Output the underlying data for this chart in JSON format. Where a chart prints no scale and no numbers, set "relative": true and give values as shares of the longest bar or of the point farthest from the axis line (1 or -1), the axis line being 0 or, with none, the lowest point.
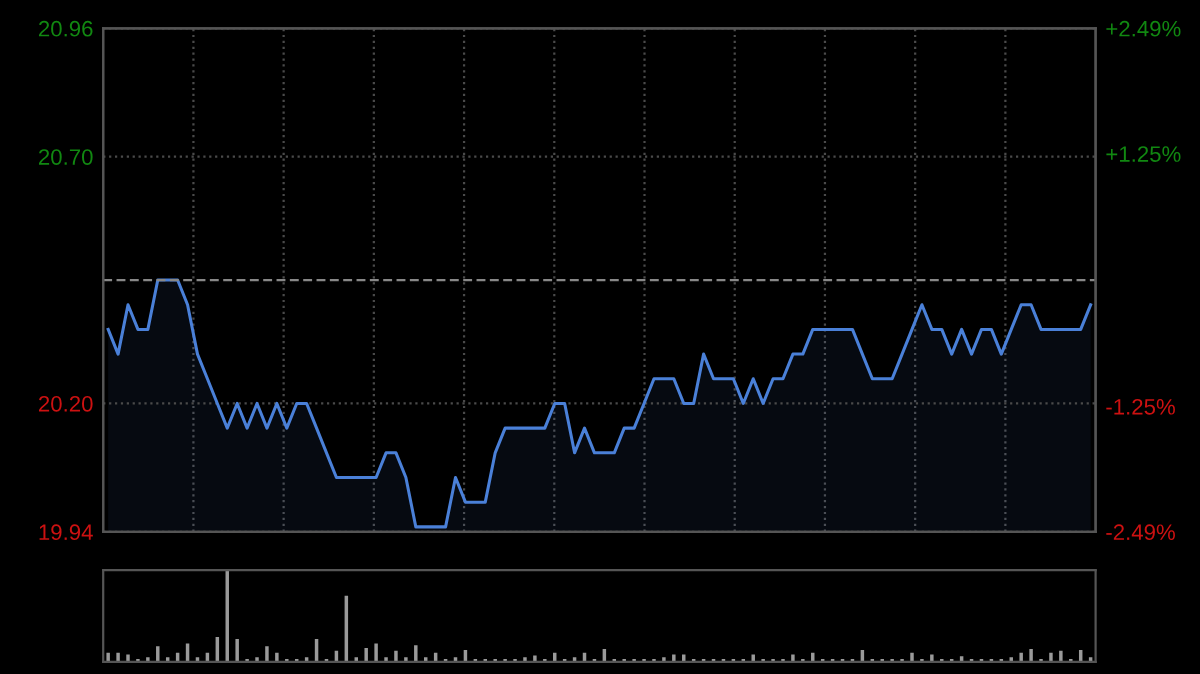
{
  "chart_data": [
    {
      "type": "area",
      "categories": [
        null,
        null,
        null,
        null,
        null,
        null,
        null,
        null,
        null,
        null,
        null,
        null,
        null,
        null,
        null,
        null,
        null,
        null,
        null,
        null,
        null,
        null,
        null,
        null,
        null,
        null,
        null,
        null,
        null,
        null,
        null,
        null,
        null,
        null,
        null,
        null,
        null,
        null,
        null,
        null,
        null,
        null,
        null,
        null,
        null,
        null,
        null,
        null,
        null,
        null,
        null,
        null,
        null,
        null,
        null,
        null,
        null,
        null,
        null,
        null,
        null,
        null,
        null,
        null,
        null,
        null,
        null,
        null,
        null,
        null,
        null,
        null,
        null,
        null,
        null,
        null,
        null,
        null,
        null,
        null,
        null,
        null,
        null,
        null,
        null,
        null,
        null,
        null,
        null,
        null,
        null,
        null,
        null,
        null,
        null,
        null,
        null,
        null,
        null,
        null
      ],
      "series": [
        {
          "color": "#4a80d8",
          "values": [
            20.35,
            20.3,
            20.4,
            20.35,
            20.35,
            20.45,
            20.45,
            20.45,
            20.4,
            20.3,
            20.25,
            20.2,
            20.15,
            20.2,
            20.15,
            20.2,
            20.15,
            20.2,
            20.15,
            20.2,
            20.2,
            20.15,
            20.1,
            20.05,
            20.05,
            20.05,
            20.05,
            20.05,
            20.1,
            20.1,
            20.05,
            19.95,
            19.95,
            19.95,
            19.95,
            20.05,
            20.0,
            20.0,
            20.0,
            20.1,
            20.15,
            20.15,
            20.15,
            20.15,
            20.15,
            20.2,
            20.2,
            20.1,
            20.15,
            20.1,
            20.1,
            20.1,
            20.15,
            20.15,
            20.2,
            20.25,
            20.25,
            20.25,
            20.2,
            20.2,
            20.3,
            20.25,
            20.25,
            20.25,
            20.2,
            20.25,
            20.2,
            20.25,
            20.25,
            20.3,
            20.3,
            20.35,
            20.35,
            20.35,
            20.35,
            20.35,
            20.3,
            20.25,
            20.25,
            20.25,
            20.3,
            20.35,
            20.4,
            20.35,
            20.35,
            20.3,
            20.35,
            20.3,
            20.35,
            20.35,
            20.3,
            20.35,
            20.4,
            20.4,
            20.35,
            20.35,
            20.35,
            20.35,
            20.35,
            20.4
          ]
        }
      ],
      "ylim": [
        19.94,
        20.96
      ],
      "yticks": [
        19.94,
        {
          "value": 20.2,
          "label": "20.20"
        },
        {
          "value": 20.7,
          "label": "20.70"
        },
        20.96
      ],
      "y2lim": [
        -2.49,
        2.49
      ],
      "y2ticks": [
        {
          "value": -2.49,
          "label": "-2.49%"
        },
        {
          "value": -1.25,
          "label": "-1.25%"
        },
        {
          "value": 1.25,
          "label": "+1.25%"
        },
        {
          "value": 2.49,
          "label": "+2.49%"
        }
      ],
      "ref_lines": [
        {
          "axis": "y",
          "value": 20.45,
          "color": "#888888",
          "line_style": "dashed"
        }
      ],
      "grid": true,
      "legend": false
    },
    {
      "type": "bar",
      "relative": true,
      "color": "#9a9a9a",
      "categories": [
        null,
        null,
        null,
        null,
        null,
        null,
        null,
        null,
        null,
        null,
        null,
        null,
        null,
        null,
        null,
        null,
        null,
        null,
        null,
        null,
        null,
        null,
        null,
        null,
        null,
        null,
        null,
        null,
        null,
        null,
        null,
        null,
        null,
        null,
        null,
        null,
        null,
        null,
        null,
        null,
        null,
        null,
        null,
        null,
        null,
        null,
        null,
        null,
        null,
        null,
        null,
        null,
        null,
        null,
        null,
        null,
        null,
        null,
        null,
        null,
        null,
        null,
        null,
        null,
        null,
        null,
        null,
        null,
        null,
        null,
        null,
        null,
        null,
        null,
        null,
        null,
        null,
        null,
        null,
        null,
        null,
        null,
        null,
        null,
        null,
        null,
        null,
        null,
        null,
        null,
        null,
        null,
        null,
        null,
        null,
        null,
        null,
        null,
        null,
        null
      ],
      "values": [
        0.1,
        0.1,
        0.08,
        0.03,
        0.05,
        0.17,
        0.05,
        0.1,
        0.2,
        0.05,
        0.1,
        0.27,
        1,
        0.25,
        0.03,
        0.05,
        0.17,
        0.1,
        0.03,
        0.03,
        0.05,
        0.25,
        0.03,
        0.12,
        0.72,
        0.05,
        0.15,
        0.2,
        0.05,
        0.12,
        0.05,
        0.18,
        0.05,
        0.1,
        0.03,
        0.05,
        0.13,
        0.03,
        0.03,
        0.03,
        0.03,
        0.03,
        0.05,
        0.07,
        0.03,
        0.1,
        0.03,
        0.05,
        0.1,
        0.03,
        0.14,
        0.03,
        0.03,
        0.03,
        0.03,
        0.03,
        0.05,
        0.08,
        0.08,
        0.03,
        0.03,
        0.03,
        0.03,
        0.03,
        0.03,
        0.08,
        0.03,
        0.03,
        0.03,
        0.08,
        0.03,
        0.1,
        0.03,
        0.03,
        0.03,
        0.03,
        0.13,
        0.03,
        0.03,
        0.03,
        0.03,
        0.1,
        0.03,
        0.08,
        0.03,
        0.03,
        0.06,
        0.03,
        0.03,
        0.03,
        0.03,
        0.05,
        0.1,
        0.14,
        0.03,
        0.1,
        0.12,
        0.03,
        0.13,
        0.05
      ]
    }
  ]
}
